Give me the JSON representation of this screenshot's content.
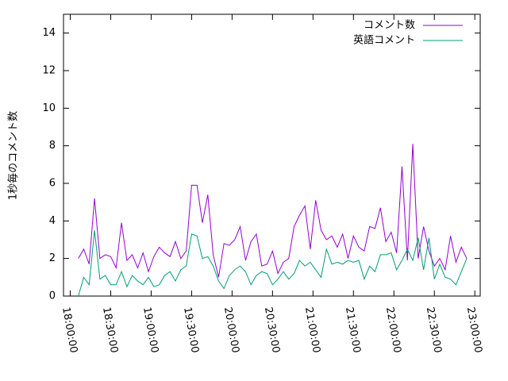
{
  "chart_data": {
    "type": "line",
    "y_label": "1秒毎のコメント数",
    "x": [
      "18:06:00",
      "18:10:00",
      "18:14:00",
      "18:18:00",
      "18:22:00",
      "18:26:00",
      "18:30:00",
      "18:34:00",
      "18:38:00",
      "18:42:00",
      "18:46:00",
      "18:50:00",
      "18:54:00",
      "18:58:00",
      "19:02:00",
      "19:06:00",
      "19:10:00",
      "19:14:00",
      "19:18:00",
      "19:22:00",
      "19:26:00",
      "19:30:00",
      "19:34:00",
      "19:38:00",
      "19:42:00",
      "19:46:00",
      "19:50:00",
      "19:54:00",
      "19:58:00",
      "20:02:00",
      "20:06:00",
      "20:10:00",
      "20:14:00",
      "20:18:00",
      "20:22:00",
      "20:26:00",
      "20:30:00",
      "20:34:00",
      "20:38:00",
      "20:42:00",
      "20:46:00",
      "20:50:00",
      "20:54:00",
      "20:58:00",
      "21:02:00",
      "21:06:00",
      "21:10:00",
      "21:14:00",
      "21:18:00",
      "21:22:00",
      "21:26:00",
      "21:30:00",
      "21:34:00",
      "21:38:00",
      "21:42:00",
      "21:46:00",
      "21:50:00",
      "21:54:00",
      "21:58:00",
      "22:02:00",
      "22:06:00",
      "22:10:00",
      "22:14:00",
      "22:18:00",
      "22:22:00",
      "22:26:00",
      "22:30:00",
      "22:34:00",
      "22:38:00",
      "22:42:00",
      "22:46:00",
      "22:50:00",
      "22:54:00"
    ],
    "series": [
      {
        "name": "コメント数",
        "color": "#9400d3",
        "values": [
          2.0,
          2.5,
          1.7,
          5.2,
          2.0,
          2.2,
          2.1,
          1.5,
          3.9,
          1.9,
          2.2,
          1.5,
          2.3,
          1.3,
          2.1,
          2.6,
          2.3,
          2.1,
          2.9,
          2.0,
          2.4,
          5.9,
          5.9,
          3.9,
          5.4,
          2.2,
          1.0,
          2.8,
          2.7,
          3.0,
          3.7,
          1.9,
          2.9,
          3.3,
          1.6,
          1.7,
          2.4,
          1.2,
          1.8,
          2.0,
          3.7,
          4.3,
          4.8,
          2.5,
          5.1,
          3.5,
          3.0,
          3.2,
          2.6,
          3.3,
          2.0,
          3.2,
          2.6,
          2.4,
          3.7,
          3.6,
          4.7,
          2.9,
          3.4,
          2.3,
          6.9,
          1.9,
          8.1,
          2.0,
          3.7,
          2.4,
          1.6,
          2.0,
          1.4,
          3.2,
          1.8,
          2.6,
          2.0
        ]
      },
      {
        "name": "英語コメント",
        "color": "#009e73",
        "values": [
          0.0,
          1.0,
          0.6,
          3.5,
          0.9,
          1.1,
          0.6,
          0.6,
          1.3,
          0.5,
          1.1,
          0.8,
          0.6,
          1.0,
          0.5,
          0.6,
          1.1,
          1.3,
          0.8,
          1.4,
          1.6,
          3.3,
          3.2,
          2.0,
          2.1,
          1.6,
          0.8,
          0.4,
          1.1,
          1.4,
          1.6,
          1.3,
          0.6,
          1.1,
          1.3,
          1.2,
          0.6,
          0.9,
          1.3,
          0.9,
          1.2,
          1.9,
          1.6,
          1.8,
          1.4,
          1.0,
          2.5,
          1.7,
          1.8,
          1.7,
          1.9,
          1.8,
          1.9,
          0.9,
          1.6,
          1.3,
          2.2,
          2.2,
          2.3,
          1.4,
          1.9,
          2.5,
          1.9,
          3.1,
          1.4,
          3.1,
          0.9,
          1.7,
          1.0,
          0.9,
          0.6,
          1.3,
          2.0
        ]
      }
    ],
    "xlim": [
      "17:55:00",
      "23:04:00"
    ],
    "xticks": [
      "18:00:00",
      "18:30:00",
      "19:00:00",
      "19:30:00",
      "20:00:00",
      "20:30:00",
      "21:00:00",
      "21:30:00",
      "22:00:00",
      "22:30:00",
      "23:00:00"
    ],
    "ylim": [
      0,
      15
    ],
    "yticks": [
      0,
      2,
      4,
      6,
      8,
      10,
      12,
      14
    ],
    "legend": "top-right"
  }
}
